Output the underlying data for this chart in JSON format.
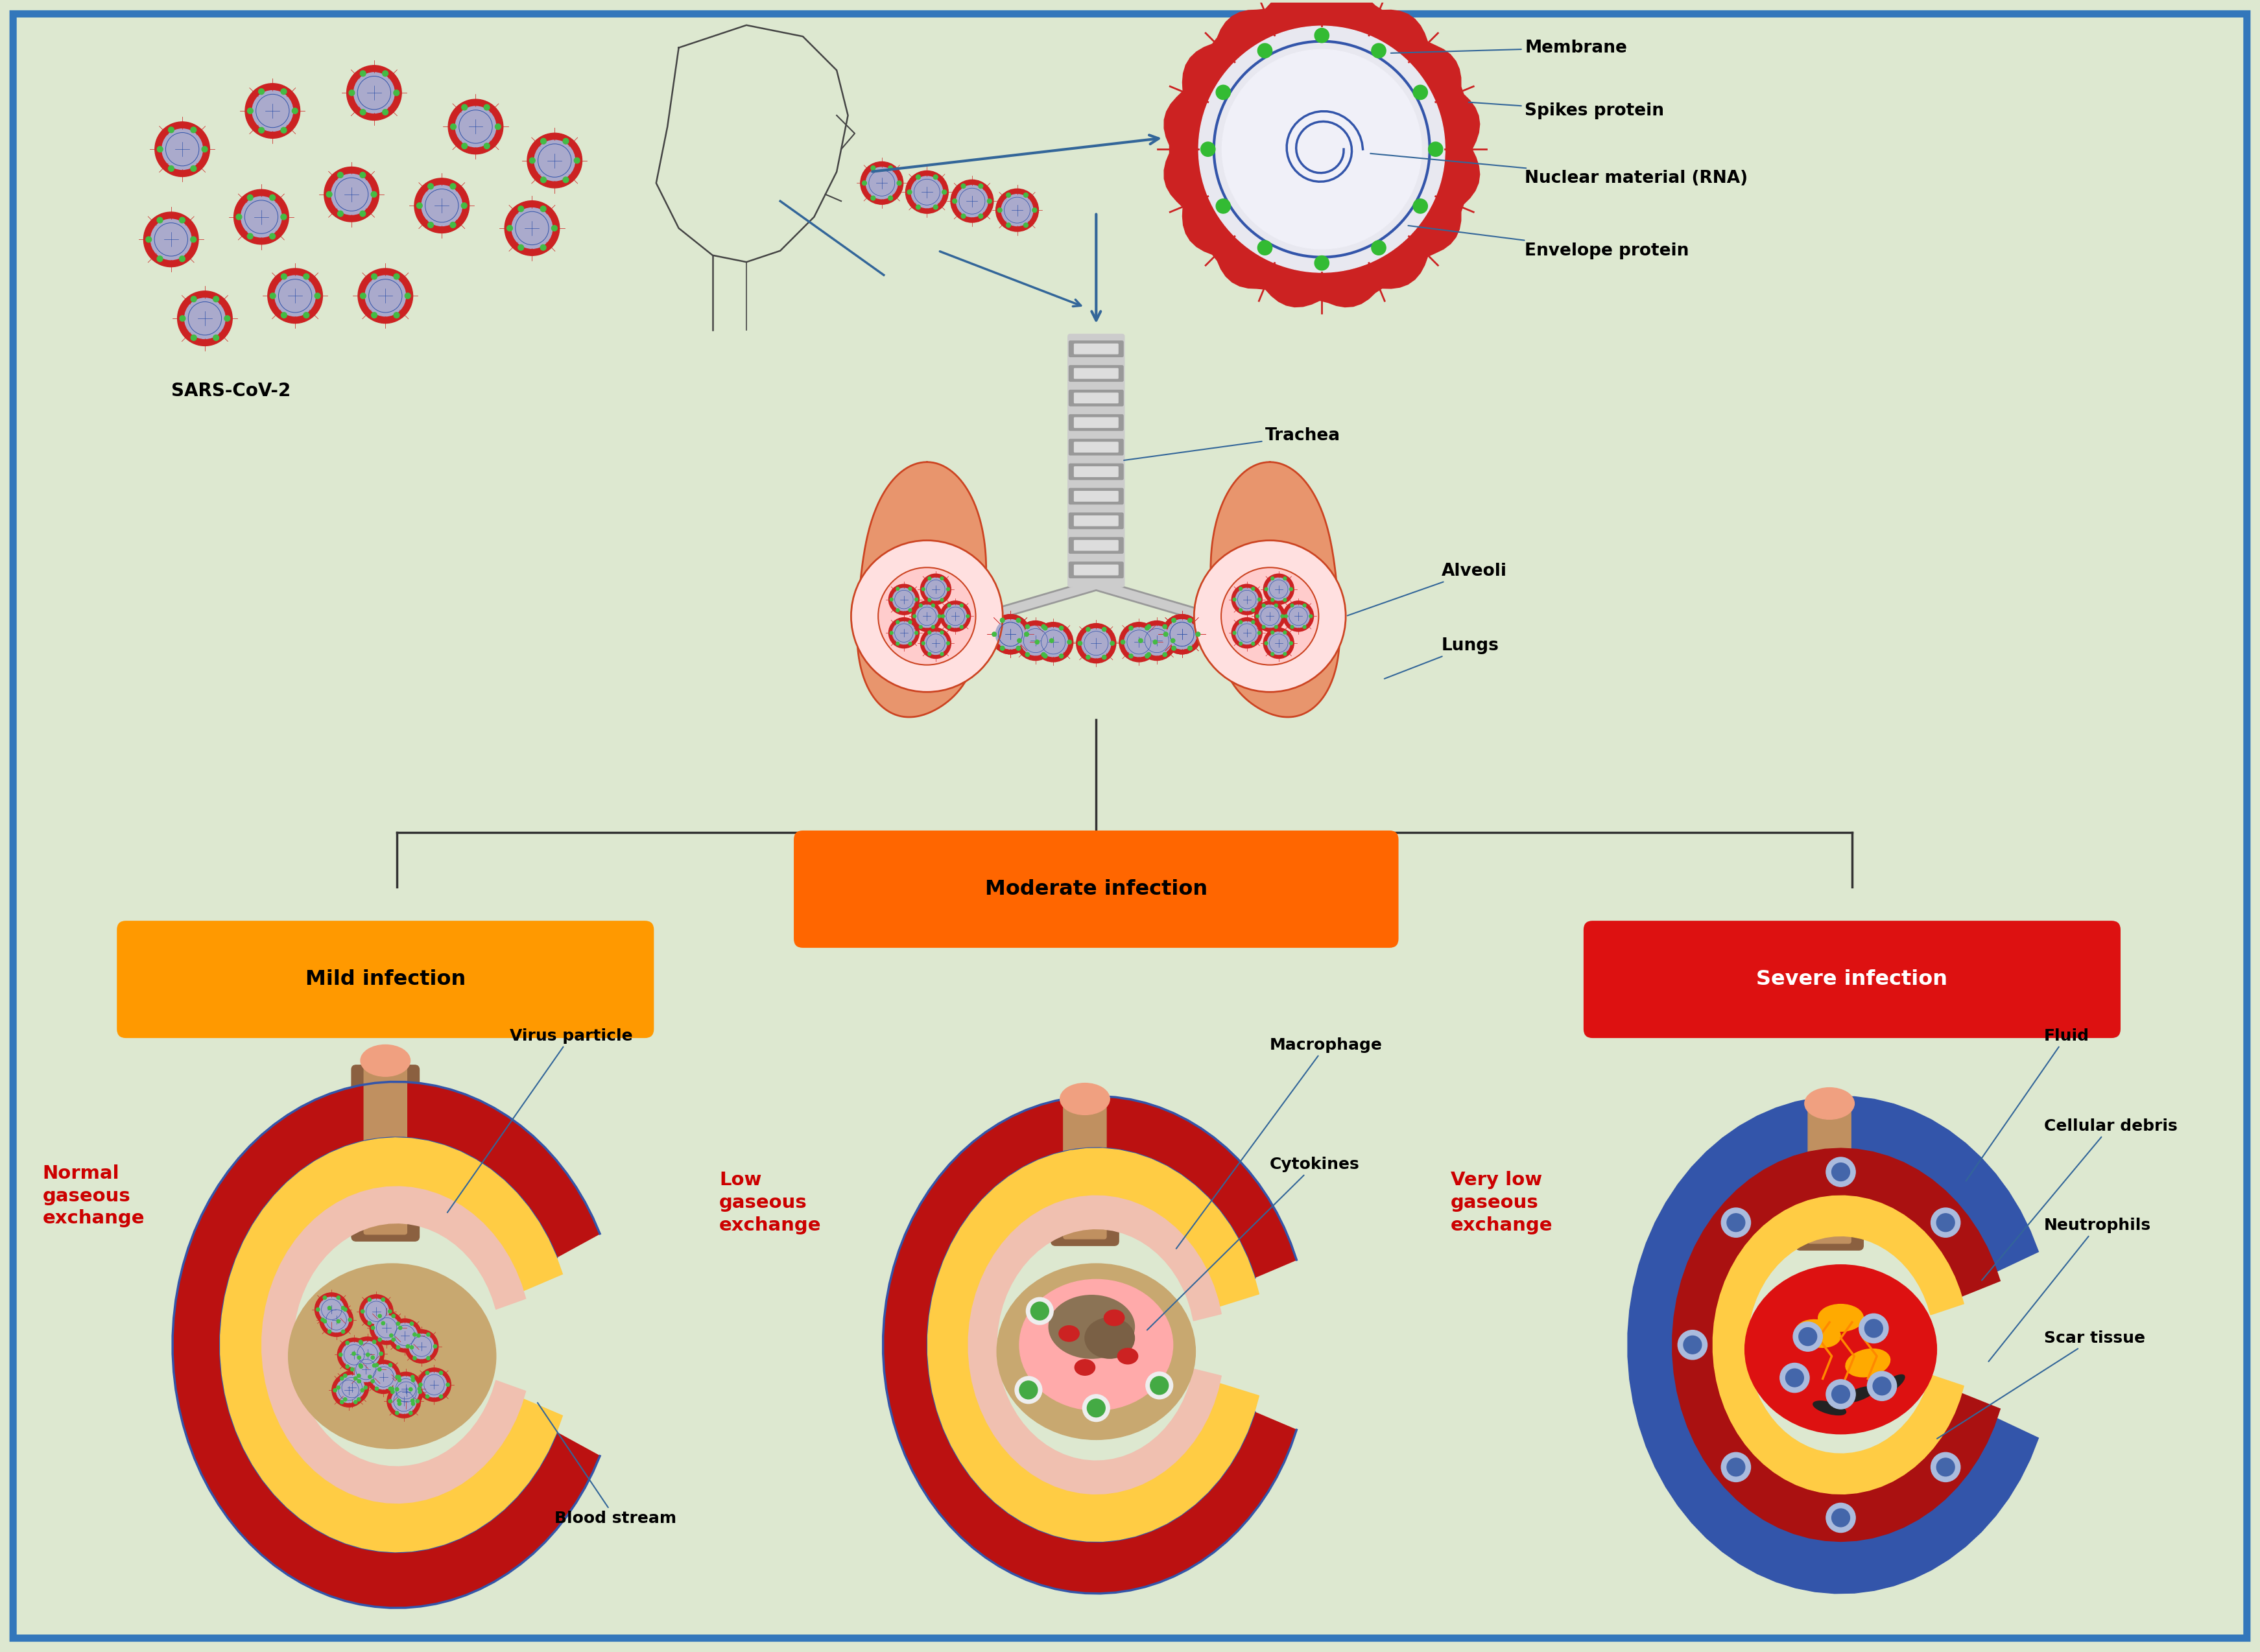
{
  "bg_color": "#dde8d0",
  "border_color": "#3377bb",
  "virus_labels": [
    "Membrane",
    "Spikes protein",
    "Nuclear material (RNA)",
    "Envelope protein"
  ],
  "body_labels": [
    "SARS-CoV-2",
    "Trachea",
    "Alveoli",
    "Lungs"
  ],
  "infection_labels": [
    "Moderate infection",
    "Mild infection",
    "Severe infection"
  ],
  "mild_labels": [
    "Virus particle",
    "Normal\ngaseous\nexchange",
    "Blood stream"
  ],
  "moderate_labels": [
    "Macrophage",
    "Cytokines",
    "Low\ngaseous\nexchange"
  ],
  "severe_labels": [
    "Fluid",
    "Cellular debris",
    "Neutrophils",
    "Scar tissue",
    "Very low\ngaseous\nexchange"
  ],
  "orange_color": "#FF8800",
  "orange_mild": "#FF9900",
  "red_color": "#DD1111",
  "label_color": "#000000",
  "red_label_color": "#CC0000",
  "line_color": "#336699",
  "lung_fill": "#E8956D",
  "lung_stroke": "#CC4422",
  "blood_dark": "#AA1111",
  "yellow_fill": "#FFCC44",
  "beige_fill": "#C8A878",
  "pink_fill": "#F0C0C0",
  "blue_ring": "#3355AA"
}
